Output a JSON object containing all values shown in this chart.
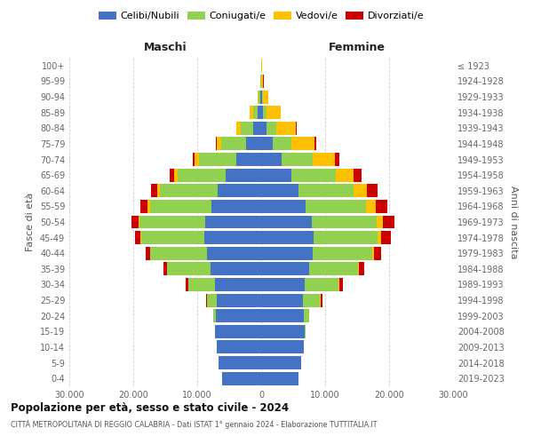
{
  "age_groups": [
    "0-4",
    "5-9",
    "10-14",
    "15-19",
    "20-24",
    "25-29",
    "30-34",
    "35-39",
    "40-44",
    "45-49",
    "50-54",
    "55-59",
    "60-64",
    "65-69",
    "70-74",
    "75-79",
    "80-84",
    "85-89",
    "90-94",
    "95-99",
    "100+"
  ],
  "birth_years": [
    "2019-2023",
    "2014-2018",
    "2009-2013",
    "2004-2008",
    "1999-2003",
    "1994-1998",
    "1989-1993",
    "1984-1988",
    "1979-1983",
    "1974-1978",
    "1969-1973",
    "1964-1968",
    "1959-1963",
    "1954-1958",
    "1949-1953",
    "1944-1948",
    "1939-1943",
    "1934-1938",
    "1929-1933",
    "1924-1928",
    "≤ 1923"
  ],
  "male_celibe": [
    6100,
    6600,
    7000,
    7200,
    7100,
    6900,
    7200,
    7900,
    8500,
    8900,
    8700,
    7800,
    6800,
    5500,
    3900,
    2400,
    1200,
    500,
    150,
    40,
    5
  ],
  "male_coniugato": [
    0,
    0,
    0,
    80,
    350,
    1600,
    4200,
    6800,
    8800,
    9800,
    10300,
    9600,
    9000,
    7600,
    5800,
    3800,
    2000,
    800,
    240,
    60,
    12
  ],
  "male_vedovo": [
    0,
    0,
    0,
    0,
    5,
    15,
    35,
    55,
    90,
    140,
    230,
    330,
    430,
    580,
    680,
    780,
    680,
    480,
    190,
    65,
    18
  ],
  "male_divorziato": [
    0,
    0,
    0,
    8,
    45,
    140,
    320,
    480,
    680,
    870,
    1050,
    1150,
    950,
    670,
    380,
    140,
    55,
    18,
    4,
    2,
    0
  ],
  "female_celibe": [
    5800,
    6200,
    6600,
    6800,
    6700,
    6500,
    6800,
    7500,
    8000,
    8200,
    7900,
    6900,
    5900,
    4700,
    3200,
    1800,
    800,
    300,
    90,
    22,
    4
  ],
  "female_coniugata": [
    0,
    0,
    0,
    180,
    750,
    2700,
    5300,
    7600,
    9300,
    10000,
    10200,
    9500,
    8500,
    6900,
    4900,
    2900,
    1500,
    600,
    170,
    45,
    8
  ],
  "female_vedova": [
    0,
    0,
    0,
    0,
    15,
    45,
    90,
    170,
    330,
    570,
    960,
    1450,
    2100,
    2900,
    3400,
    3700,
    3100,
    2100,
    860,
    280,
    75
  ],
  "female_divorziata": [
    0,
    0,
    0,
    18,
    90,
    280,
    620,
    870,
    1150,
    1450,
    1750,
    1850,
    1650,
    1150,
    670,
    280,
    90,
    28,
    7,
    2,
    0
  ],
  "colors": {
    "celibe": "#4472C4",
    "coniugato": "#92D050",
    "vedovo": "#FFC000",
    "divorziato": "#CC0000"
  },
  "title": "Popolazione per età, sesso e stato civile - 2024",
  "subtitle": "CITTÀ METROPOLITANA DI REGGIO CALABRIA - Dati ISTAT 1° gennaio 2024 - Elaborazione TUTTITALIA.IT",
  "xlabel_left": "Maschi",
  "xlabel_right": "Femmine",
  "ylabel_left": "Fasce di età",
  "ylabel_right": "Anni di nascita",
  "xlim": 30000,
  "background_color": "#ffffff"
}
